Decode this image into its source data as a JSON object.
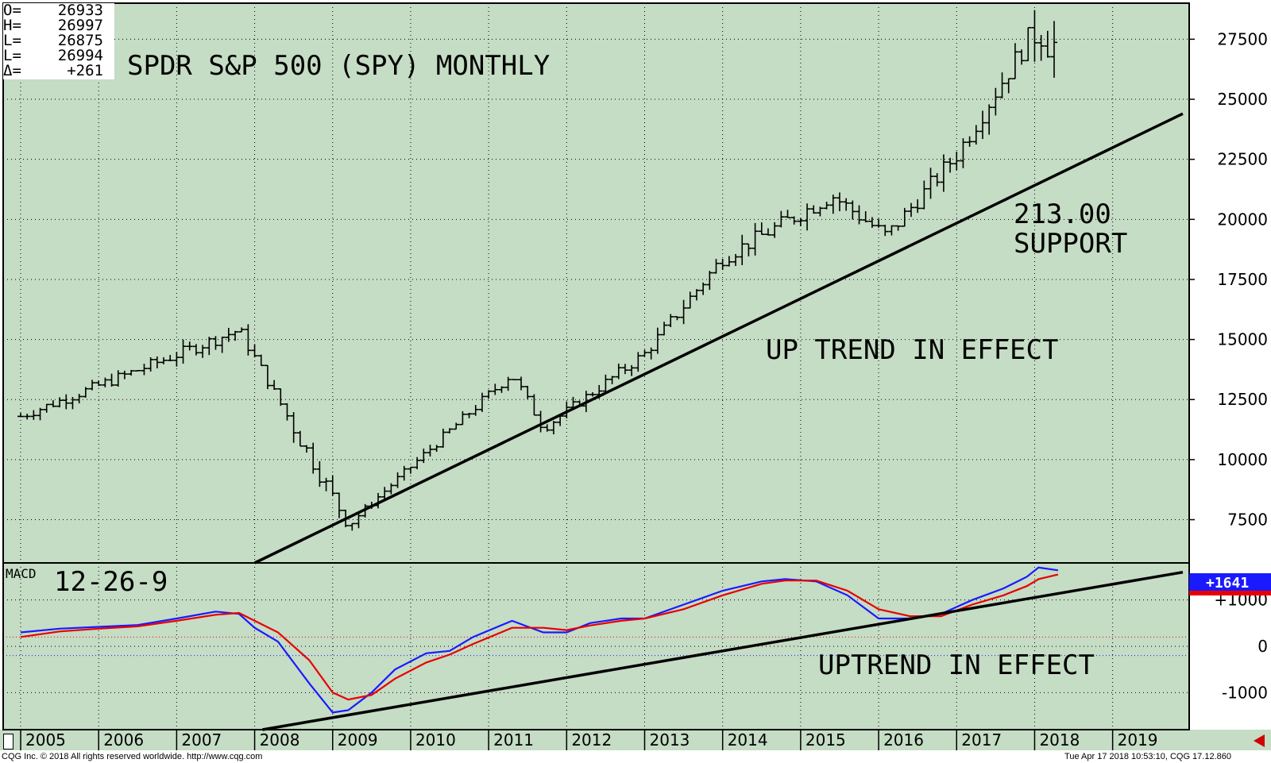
{
  "ohlc": [
    {
      "label": "O=",
      "value": "26933"
    },
    {
      "label": "H=",
      "value": "26997"
    },
    {
      "label": "L=",
      "value": "26875"
    },
    {
      "label": "L=",
      "value": "26994"
    },
    {
      "label": "Δ=",
      "value": "+261"
    }
  ],
  "footer": {
    "left": "CQG Inc. © 2018 All rights reserved worldwide. http://www.cqg.com",
    "right": "Tue Apr 17 2018 10:53:10, CQG 17.12.860"
  },
  "colors": {
    "background": "#c5dcc5",
    "macd_line": "#1a1aff",
    "signal_line": "#e80000",
    "trendline": "#000000",
    "bars": "#000000"
  },
  "chart_data": [
    {
      "type": "ohlc",
      "title": "SPDR S&P 500 (SPY) MONTHLY",
      "annotations": [
        "213.00",
        "SUPPORT",
        "UP TREND IN EFFECT"
      ],
      "x_tick_labels": [
        "2005",
        "2006",
        "2007",
        "2008",
        "2009",
        "2010",
        "2011",
        "2012",
        "2013",
        "2014",
        "2015",
        "2016",
        "2017",
        "2018",
        "2019"
      ],
      "y_tick_labels": [
        "7500",
        "10000",
        "12500",
        "15000",
        "17500",
        "20000",
        "22500",
        "25000",
        "27500"
      ],
      "ylim": [
        5700,
        29000
      ],
      "xlim": [
        2005.0,
        2019.9
      ],
      "grid": true,
      "key_points": [
        {
          "x": 2005.0,
          "close": 11800
        },
        {
          "x": 2007.8,
          "close": 15400
        },
        {
          "x": 2009.2,
          "close": 7300
        },
        {
          "x": 2011.3,
          "close": 13600
        },
        {
          "x": 2011.7,
          "close": 11300
        },
        {
          "x": 2013.0,
          "close": 14400
        },
        {
          "x": 2014.0,
          "close": 18400
        },
        {
          "x": 2015.4,
          "close": 21000
        },
        {
          "x": 2016.1,
          "close": 19300
        },
        {
          "x": 2017.0,
          "close": 22700
        },
        {
          "x": 2018.05,
          "close": 28200
        },
        {
          "x": 2018.3,
          "close": 26994
        }
      ],
      "trendline": [
        [
          2008.0,
          5700
        ],
        [
          2019.9,
          24400
        ]
      ]
    },
    {
      "type": "line",
      "title": "MACD",
      "subtitle": "12-26-9",
      "annotation": "UPTREND IN EFFECT",
      "last_value": "+1641",
      "y_tick_labels": [
        "-1000",
        "0",
        "+1000"
      ],
      "ylim": [
        -1800,
        1800
      ],
      "series": [
        {
          "color": "#1a1aff",
          "x": [
            2005.0,
            2005.5,
            2006.0,
            2006.5,
            2007.0,
            2007.5,
            2007.8,
            2008.0,
            2008.3,
            2008.7,
            2009.0,
            2009.2,
            2009.5,
            2009.8,
            2010.2,
            2010.5,
            2010.8,
            2011.3,
            2011.7,
            2012.0,
            2012.3,
            2012.7,
            2013.0,
            2013.5,
            2014.0,
            2014.5,
            2014.8,
            2015.2,
            2015.6,
            2016.0,
            2016.4,
            2016.8,
            2017.2,
            2017.6,
            2017.9,
            2018.05,
            2018.3
          ],
          "y": [
            300,
            380,
            420,
            460,
            600,
            750,
            700,
            400,
            100,
            -800,
            -1430,
            -1380,
            -1000,
            -500,
            -150,
            -100,
            200,
            550,
            300,
            300,
            500,
            600,
            600,
            900,
            1200,
            1400,
            1450,
            1400,
            1100,
            600,
            600,
            700,
            1000,
            1250,
            1500,
            1700,
            1641
          ]
        },
        {
          "color": "#e80000",
          "x": [
            2005.0,
            2005.5,
            2006.0,
            2006.5,
            2007.0,
            2007.5,
            2007.8,
            2008.0,
            2008.3,
            2008.7,
            2009.0,
            2009.2,
            2009.5,
            2009.8,
            2010.2,
            2010.5,
            2010.8,
            2011.3,
            2011.7,
            2012.0,
            2012.3,
            2012.7,
            2013.0,
            2013.5,
            2014.0,
            2014.5,
            2014.8,
            2015.2,
            2015.6,
            2016.0,
            2016.4,
            2016.8,
            2017.2,
            2017.6,
            2017.9,
            2018.05,
            2018.3
          ],
          "y": [
            200,
            320,
            380,
            430,
            550,
            680,
            720,
            550,
            300,
            -300,
            -1000,
            -1150,
            -1050,
            -700,
            -350,
            -180,
            50,
            400,
            400,
            350,
            450,
            550,
            600,
            800,
            1100,
            1350,
            1420,
            1420,
            1200,
            800,
            650,
            650,
            900,
            1100,
            1300,
            1450,
            1550
          ]
        }
      ],
      "trendline": [
        [
          2008.1,
          -1800
        ],
        [
          2019.9,
          1600
        ]
      ]
    }
  ]
}
